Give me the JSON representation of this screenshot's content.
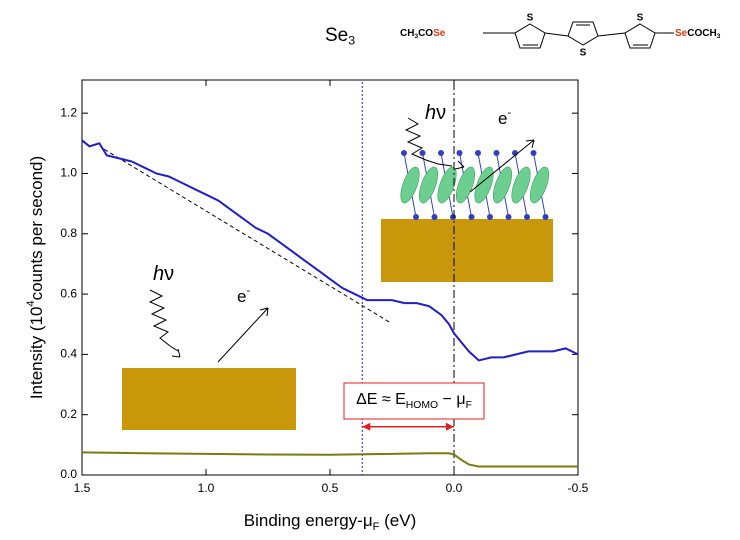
{
  "chart_data": {
    "type": "line",
    "title": [
      {
        "text": "Se"
      },
      {
        "text": "3",
        "sub": true
      }
    ],
    "title_color": "#3333cc",
    "molecule": {
      "left": [
        {
          "text": "CH"
        },
        {
          "text": "3",
          "sub": true
        },
        {
          "text": "CO"
        },
        {
          "text": "Se",
          "color": "#e03c14"
        }
      ],
      "right": [
        {
          "text": "Se",
          "color": "#e03c14"
        },
        {
          "text": "COCH"
        },
        {
          "text": "3",
          "sub": true
        }
      ],
      "ring_atoms": [
        "S",
        "S",
        "S"
      ]
    },
    "x_label": [
      {
        "text": "Binding energy-μ"
      },
      {
        "text": "F",
        "sub": true
      },
      {
        "text": " (eV)"
      }
    ],
    "y_label": [
      {
        "text": "Intensity (10"
      },
      {
        "text": "4",
        "sup": true
      },
      {
        "text": "counts per second)"
      }
    ],
    "xlim": [
      1.5,
      -0.5
    ],
    "ylim": [
      0,
      1.31
    ],
    "xticks": [
      1.5,
      {
        "value": 1,
        "label": "1.0"
      },
      0.5,
      {
        "value": 0,
        "label": "0.0"
      },
      -0.5
    ],
    "yticks": [
      {
        "value": 0,
        "label": "0.0"
      },
      0.2,
      0.4,
      0.6,
      0.8,
      {
        "value": 1,
        "label": "1.0"
      },
      1.2
    ],
    "series": [
      {
        "color": "#2020c8",
        "x": [
          1.5,
          1.47,
          1.43,
          1.4,
          1.35,
          1.3,
          1.25,
          1.2,
          1.15,
          1.1,
          1.05,
          1.0,
          0.95,
          0.9,
          0.85,
          0.8,
          0.75,
          0.7,
          0.65,
          0.6,
          0.55,
          0.5,
          0.45,
          0.4,
          0.35,
          0.3,
          0.25,
          0.2,
          0.15,
          0.1,
          0.05,
          0.02,
          0.0,
          -0.03,
          -0.06,
          -0.1,
          -0.15,
          -0.2,
          -0.25,
          -0.3,
          -0.35,
          -0.4,
          -0.45,
          -0.5
        ],
        "values": [
          1.11,
          1.09,
          1.1,
          1.06,
          1.05,
          1.04,
          1.02,
          1.0,
          0.99,
          0.97,
          0.95,
          0.93,
          0.91,
          0.88,
          0.85,
          0.82,
          0.8,
          0.77,
          0.74,
          0.71,
          0.68,
          0.65,
          0.62,
          0.6,
          0.58,
          0.58,
          0.58,
          0.57,
          0.57,
          0.56,
          0.53,
          0.5,
          0.47,
          0.44,
          0.41,
          0.38,
          0.39,
          0.39,
          0.4,
          0.41,
          0.41,
          0.41,
          0.42,
          0.4
        ]
      },
      {
        "color": "#7a7a10",
        "x": [
          1.5,
          1.25,
          1.0,
          0.75,
          0.5,
          0.25,
          0.1,
          0.02,
          0.0,
          -0.03,
          -0.06,
          -0.1,
          -0.3,
          -0.5
        ],
        "values": [
          0.075,
          0.072,
          0.07,
          0.068,
          0.067,
          0.07,
          0.072,
          0.072,
          0.068,
          0.05,
          0.035,
          0.028,
          0.028,
          0.028
        ]
      }
    ],
    "fit": {
      "color": "#000000",
      "x": [
        1.41,
        0.26
      ],
      "values": [
        1.08,
        0.507
      ]
    },
    "markers": [
      {
        "x": 0.37,
        "color": "#2020c8",
        "style": "dotted"
      },
      {
        "x": 0,
        "color": "#000000",
        "style": "dashdot"
      }
    ],
    "delta_arrow": {
      "from": 0.37,
      "to": 0,
      "y": 0.16,
      "color": "#e02020"
    },
    "delta_label": [
      {
        "text": "ΔE ≈ E"
      },
      {
        "text": "HOMO",
        "sub": true
      },
      {
        "text": " − μ"
      },
      {
        "text": "F",
        "sub": true
      }
    ],
    "photon": [
      {
        "text": "h",
        "italic": true
      },
      {
        "text": "ν"
      }
    ],
    "electron": [
      {
        "text": "e"
      },
      {
        "text": "-",
        "sup": true
      }
    ]
  }
}
